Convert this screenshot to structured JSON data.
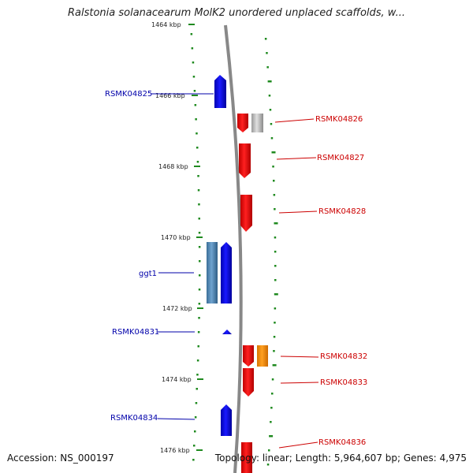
{
  "title": "Ralstonia solanacearum MolK2 unordered unplaced scaffolds, w...",
  "footer": {
    "accession": "Accession: NS_000197",
    "topology": "Topology: linear; Length: 5,964,607 bp; Genes: 4,975"
  },
  "colors": {
    "forward_gene": "#0000ee",
    "reverse_gene": "#ee0000",
    "steelblue_gene": "#4682b4",
    "orange_gene": "#ff8c00",
    "gray_gene": "#bbbbbb",
    "axis": "#888888",
    "tick": "#1f8a1f"
  },
  "kbp_labels": [
    "1464 kbp",
    "1466 kbp",
    "1468 kbp",
    "1470 kbp",
    "1472 kbp",
    "1474 kbp",
    "1476 kbp"
  ],
  "genes_left": [
    {
      "id": "RSMK04825",
      "label": "RSMK04825"
    },
    {
      "id": "ggt1",
      "label": "ggt1"
    },
    {
      "id": "RSMK04831",
      "label": "RSMK04831"
    },
    {
      "id": "RSMK04834",
      "label": "RSMK04834"
    }
  ],
  "genes_right": [
    {
      "id": "RSMK04826",
      "label": "RSMK04826"
    },
    {
      "id": "RSMK04827",
      "label": "RSMK04827"
    },
    {
      "id": "RSMK04828",
      "label": "RSMK04828"
    },
    {
      "id": "RSMK04832",
      "label": "RSMK04832"
    },
    {
      "id": "RSMK04833",
      "label": "RSMK04833"
    },
    {
      "id": "RSMK04836",
      "label": "RSMK04836"
    }
  ]
}
